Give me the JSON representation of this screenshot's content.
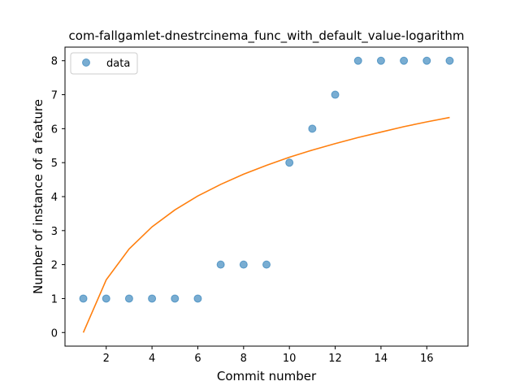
{
  "chart_data": {
    "type": "scatter",
    "title": "com-fallgamlet-dnestrcinema_func_with_default_value-logarithm",
    "xlabel": "Commit number",
    "ylabel": "Number of instance of a feature",
    "xlim": [
      0.2,
      17.8
    ],
    "ylim": [
      -0.4,
      8.4
    ],
    "xticks": [
      2,
      4,
      6,
      8,
      10,
      12,
      14,
      16
    ],
    "yticks": [
      0,
      1,
      2,
      3,
      4,
      5,
      6,
      7,
      8
    ],
    "grid": false,
    "legend_position": "upper-left",
    "series": [
      {
        "name": "data",
        "kind": "scatter",
        "color": "#1f77b4",
        "x": [
          1,
          2,
          3,
          4,
          5,
          6,
          7,
          8,
          9,
          10,
          11,
          12,
          13,
          14,
          15,
          16,
          17
        ],
        "y": [
          1,
          1,
          1,
          1,
          1,
          1,
          2,
          2,
          2,
          5,
          6,
          7,
          8,
          8,
          8,
          8,
          8
        ]
      },
      {
        "kind": "line",
        "color": "#ff7f0e",
        "x": [
          1,
          2,
          3,
          4,
          5,
          6,
          7,
          8,
          9,
          10,
          11,
          12,
          13,
          14,
          15,
          16,
          17
        ],
        "y": [
          0,
          1.55,
          2.46,
          3.11,
          3.61,
          4.02,
          4.36,
          4.66,
          4.92,
          5.16,
          5.37,
          5.56,
          5.74,
          5.9,
          6.06,
          6.2,
          6.33
        ]
      }
    ]
  }
}
